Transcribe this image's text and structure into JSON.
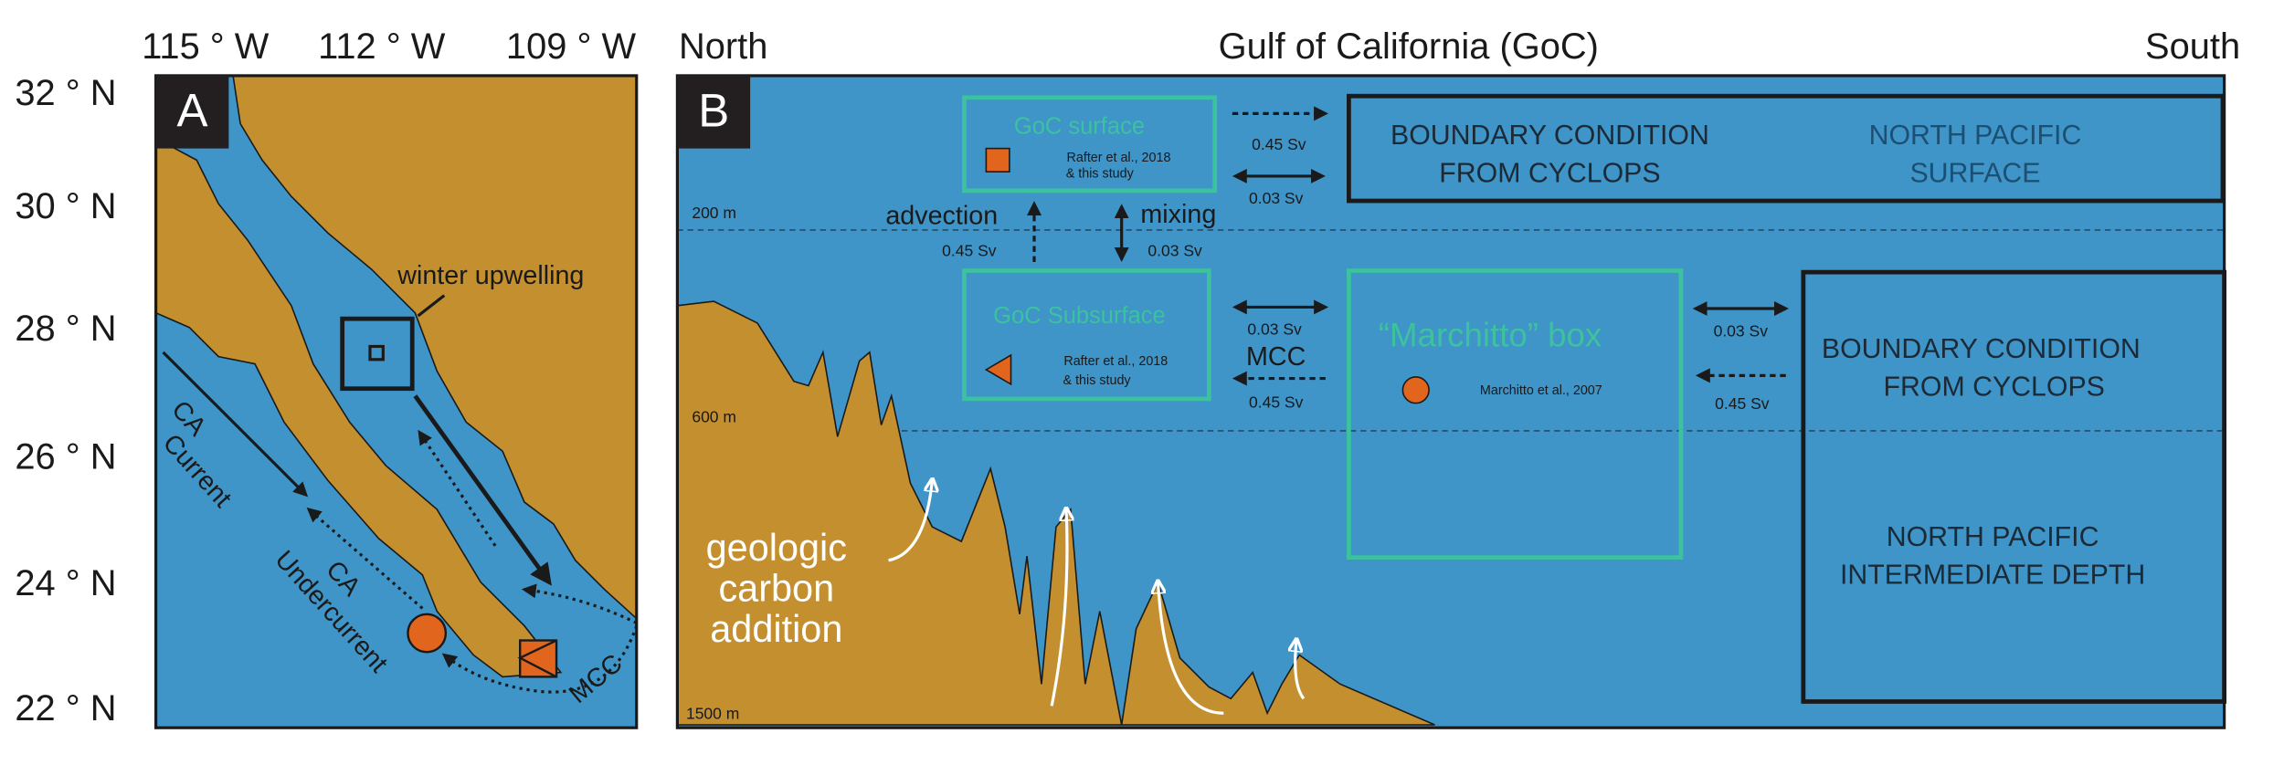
{
  "header": {
    "lon_labels": [
      "115 ° W",
      "112 ° W",
      "109 ° W"
    ],
    "north": "North",
    "title": "Gulf of California (GoC)",
    "south": "South"
  },
  "lat_labels": [
    "32 ° N",
    "30 ° N",
    "28 ° N",
    "26 ° N",
    "24 ° N",
    "22 ° N"
  ],
  "panel_a": {
    "letter": "A",
    "winter_upwelling": "winter upwelling",
    "ca_current": [
      "CA",
      "Current"
    ],
    "ca_undercurrent": [
      "CA",
      "Undercurrent"
    ],
    "mcc": "MCC"
  },
  "panel_b": {
    "letter": "B",
    "depths": [
      "200 m",
      "600 m",
      "1500 m"
    ],
    "goc_surface": {
      "title": "GoC surface",
      "ref_1": "Rafter et al., 2018",
      "ref_2": "& this study"
    },
    "goc_subsurface": {
      "title": "GoC Subsurface",
      "ref_1": "Rafter et al., 2018",
      "ref_2": "& this study"
    },
    "marchitto": {
      "title": "“Marchitto” box",
      "ref": "Marchitto et al., 2007"
    },
    "boundary_surface": {
      "line_1": "BOUNDARY CONDITION",
      "line_2": "FROM CYCLOPS",
      "source_1": "NORTH PACIFIC",
      "source_2": "SURFACE"
    },
    "boundary_deep": {
      "line_1": "BOUNDARY CONDITION",
      "line_2": "FROM CYCLOPS",
      "source_1": "NORTH PACIFIC",
      "source_2": "INTERMEDIATE DEPTH"
    },
    "fluxes": {
      "surface_out": "0.45 Sv",
      "surface_exchange": "0.03 Sv",
      "advection": "advection",
      "advection_flux": "0.45 Sv",
      "mixing": "mixing",
      "mixing_flux": "0.03 Sv",
      "subsurface_exchange": "0.03 Sv",
      "mcc": "MCC",
      "mcc_flux": "0.45 Sv",
      "deep_exchange": "0.03 Sv",
      "deep_in": "0.45 Sv"
    },
    "geologic": [
      "geologic",
      "carbon",
      "addition"
    ]
  }
}
